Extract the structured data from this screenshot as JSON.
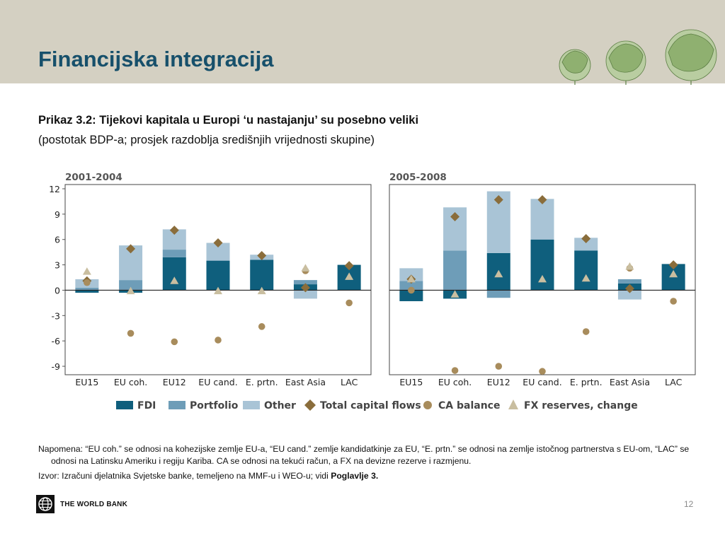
{
  "slide": {
    "title": "Financijska integracija",
    "chart_title": "Prikaz 3.2: Tijekovi kapitala u Europi ‘u nastajanju’ su posebno veliki",
    "chart_subtitle": "(postotak BDP-a; prosjek razdoblja središnjih vrijednosti skupine)",
    "note": "Napomena: “EU coh.” se odnosi na kohezijske zemlje EU-a, “EU cand.” zemlje kandidatkinje za EU, “E. prtn.” se odnosi na zemlje istočnog partnerstva s EU-om, “LAC” se odnosi na Latinsku Ameriku i regiju Kariba. CA se odnosi na tekući račun, a FX na devizne rezerve i razmjenu.",
    "source_prefix": "Izvor: Izračuni djelatnika Svjetske banke, temeljeno na MMF-u i WEO-u; vidi ",
    "source_bold": "Poglavlje 3.",
    "footer_org": "THE WORLD BANK",
    "page_number": "12"
  },
  "colors": {
    "header_bg": "#d4d0c2",
    "title": "#17506b",
    "fdi": "#0f5f7d",
    "portfolio": "#6e9db8",
    "other": "#a9c4d6",
    "total_capital_flows": "#8a6d3b",
    "ca_balance": "#a88c5c",
    "fx_reserves": "#c9bea0"
  },
  "chart_data": {
    "type": "bar",
    "stacked": true,
    "ylim": [
      -10,
      12
    ],
    "yticks": [
      12,
      9,
      6,
      3,
      0,
      -3,
      -6,
      -9
    ],
    "categories": [
      "EU15",
      "EU coh.",
      "EU12",
      "EU cand.",
      "E. prtn.",
      "East Asia",
      "LAC"
    ],
    "legend": [
      "FDI",
      "Portfolio",
      "Other",
      "Total capital flows",
      "CA balance",
      "FX reserves, change"
    ],
    "legend_placement": "bottom",
    "grid": false,
    "panels": [
      {
        "title": "2001-2004",
        "series": [
          {
            "name": "FDI",
            "kind": "bar",
            "values": [
              -0.3,
              -0.3,
              3.9,
              3.5,
              3.6,
              0.7,
              3.0
            ]
          },
          {
            "name": "Portfolio",
            "kind": "bar",
            "values": [
              0.3,
              1.2,
              0.9,
              0,
              0,
              0.5,
              0
            ]
          },
          {
            "name": "Other",
            "kind": "bar",
            "values": [
              1.0,
              4.1,
              2.4,
              2.1,
              0.6,
              -1.0,
              0
            ]
          },
          {
            "name": "Total capital flows",
            "kind": "diamond",
            "values": [
              1.1,
              4.9,
              7.1,
              5.6,
              4.1,
              0.3,
              2.9
            ]
          },
          {
            "name": "CA balance",
            "kind": "circle",
            "values": [
              0.9,
              -5.1,
              -6.1,
              -5.9,
              -4.3,
              2.3,
              -1.5
            ]
          },
          {
            "name": "FX reserves, change",
            "kind": "triangle",
            "values": [
              2.2,
              -0.1,
              1.1,
              -0.1,
              -0.1,
              2.6,
              1.6
            ]
          }
        ]
      },
      {
        "title": "2005-2008",
        "series": [
          {
            "name": "FDI",
            "kind": "bar",
            "values": [
              -1.3,
              -1.0,
              4.4,
              6.0,
              4.7,
              0.8,
              3.1
            ]
          },
          {
            "name": "Portfolio",
            "kind": "bar",
            "values": [
              1.1,
              4.7,
              -0.9,
              0,
              0,
              0.5,
              0
            ]
          },
          {
            "name": "Other",
            "kind": "bar",
            "values": [
              1.5,
              5.1,
              7.3,
              4.8,
              1.5,
              -1.1,
              0
            ]
          },
          {
            "name": "Total capital flows",
            "kind": "diamond",
            "values": [
              1.3,
              8.7,
              10.7,
              10.7,
              6.1,
              0.2,
              3.0
            ]
          },
          {
            "name": "CA balance",
            "kind": "circle",
            "values": [
              0,
              -9.5,
              -9.0,
              -9.6,
              -4.9,
              2.6,
              -1.3
            ]
          },
          {
            "name": "FX reserves, change",
            "kind": "triangle",
            "values": [
              1.3,
              -0.5,
              1.9,
              1.3,
              1.4,
              2.8,
              1.9
            ]
          }
        ]
      }
    ]
  }
}
